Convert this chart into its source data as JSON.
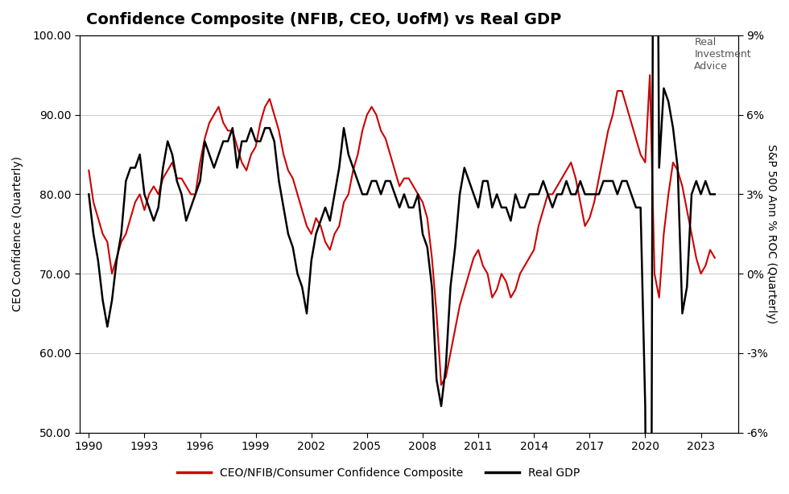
{
  "title": "Confidence Composite (NFIB, CEO, UofM) vs Real GDP",
  "xlabel": "",
  "ylabel_left": "CEO Confidence (Quarterly)",
  "ylabel_right": "S&P 500 Ann % ROC (Quarterly)",
  "ylim_left": [
    50.0,
    100.0
  ],
  "ylim_right": [
    -6.0,
    9.0
  ],
  "yticks_left": [
    50.0,
    60.0,
    70.0,
    80.0,
    90.0,
    100.0
  ],
  "yticks_right_vals": [
    -6,
    -3,
    0,
    3,
    6,
    9
  ],
  "yticks_right_labels": [
    "-6%",
    "-3%",
    "0%",
    "3%",
    "6%",
    "9%"
  ],
  "xticks": [
    1990,
    1993,
    1996,
    1999,
    2002,
    2005,
    2008,
    2011,
    2014,
    2017,
    2020,
    2023
  ],
  "xlim": [
    1989.5,
    2025.0
  ],
  "confidence_color": "#cc0000",
  "gdp_color": "#000000",
  "background_color": "#ffffff",
  "grid_color": "#cccccc",
  "legend_confidence": "CEO/NFIB/Consumer Confidence Composite",
  "legend_gdp": "Real GDP",
  "confidence_x": [
    1990.0,
    1990.25,
    1990.5,
    1990.75,
    1991.0,
    1991.25,
    1991.5,
    1991.75,
    1992.0,
    1992.25,
    1992.5,
    1992.75,
    1993.0,
    1993.25,
    1993.5,
    1993.75,
    1994.0,
    1994.25,
    1994.5,
    1994.75,
    1995.0,
    1995.25,
    1995.5,
    1995.75,
    1996.0,
    1996.25,
    1996.5,
    1996.75,
    1997.0,
    1997.25,
    1997.5,
    1997.75,
    1998.0,
    1998.25,
    1998.5,
    1998.75,
    1999.0,
    1999.25,
    1999.5,
    1999.75,
    2000.0,
    2000.25,
    2000.5,
    2000.75,
    2001.0,
    2001.25,
    2001.5,
    2001.75,
    2002.0,
    2002.25,
    2002.5,
    2002.75,
    2003.0,
    2003.25,
    2003.5,
    2003.75,
    2004.0,
    2004.25,
    2004.5,
    2004.75,
    2005.0,
    2005.25,
    2005.5,
    2005.75,
    2006.0,
    2006.25,
    2006.5,
    2006.75,
    2007.0,
    2007.25,
    2007.5,
    2007.75,
    2008.0,
    2008.25,
    2008.5,
    2008.75,
    2009.0,
    2009.25,
    2009.5,
    2009.75,
    2010.0,
    2010.25,
    2010.5,
    2010.75,
    2011.0,
    2011.25,
    2011.5,
    2011.75,
    2012.0,
    2012.25,
    2012.5,
    2012.75,
    2013.0,
    2013.25,
    2013.5,
    2013.75,
    2014.0,
    2014.25,
    2014.5,
    2014.75,
    2015.0,
    2015.25,
    2015.5,
    2015.75,
    2016.0,
    2016.25,
    2016.5,
    2016.75,
    2017.0,
    2017.25,
    2017.5,
    2017.75,
    2018.0,
    2018.25,
    2018.5,
    2018.75,
    2019.0,
    2019.25,
    2019.5,
    2019.75,
    2020.0,
    2020.25,
    2020.5,
    2020.75,
    2021.0,
    2021.25,
    2021.5,
    2021.75,
    2022.0,
    2022.25,
    2022.5,
    2022.75,
    2023.0,
    2023.25,
    2023.5,
    2023.75
  ],
  "confidence_y": [
    83,
    79,
    77,
    75,
    74,
    70,
    72,
    74,
    75,
    77,
    79,
    80,
    78,
    80,
    81,
    80,
    82,
    83,
    84,
    82,
    82,
    81,
    80,
    80,
    84,
    87,
    89,
    90,
    91,
    89,
    88,
    88,
    86,
    84,
    83,
    85,
    86,
    89,
    91,
    92,
    90,
    88,
    85,
    83,
    82,
    80,
    78,
    76,
    75,
    77,
    76,
    74,
    73,
    75,
    76,
    79,
    80,
    83,
    85,
    88,
    90,
    91,
    90,
    88,
    87,
    85,
    83,
    81,
    82,
    82,
    81,
    80,
    79,
    77,
    72,
    65,
    56,
    57,
    60,
    63,
    66,
    68,
    70,
    72,
    73,
    71,
    70,
    67,
    68,
    70,
    69,
    67,
    68,
    70,
    71,
    72,
    73,
    76,
    78,
    80,
    80,
    81,
    82,
    83,
    84,
    82,
    79,
    76,
    77,
    79,
    82,
    85,
    88,
    90,
    93,
    93,
    91,
    89,
    87,
    85,
    84,
    95,
    70,
    67,
    75,
    80,
    84,
    83,
    81,
    78,
    75,
    72,
    70,
    71,
    73,
    72
  ],
  "gdp_x": [
    1990.0,
    1990.25,
    1990.5,
    1990.75,
    1991.0,
    1991.25,
    1991.5,
    1991.75,
    1992.0,
    1992.25,
    1992.5,
    1992.75,
    1993.0,
    1993.25,
    1993.5,
    1993.75,
    1994.0,
    1994.25,
    1994.5,
    1994.75,
    1995.0,
    1995.25,
    1995.5,
    1995.75,
    1996.0,
    1996.25,
    1996.5,
    1996.75,
    1997.0,
    1997.25,
    1997.5,
    1997.75,
    1998.0,
    1998.25,
    1998.5,
    1998.75,
    1999.0,
    1999.25,
    1999.5,
    1999.75,
    2000.0,
    2000.25,
    2000.5,
    2000.75,
    2001.0,
    2001.25,
    2001.5,
    2001.75,
    2002.0,
    2002.25,
    2002.5,
    2002.75,
    2003.0,
    2003.25,
    2003.5,
    2003.75,
    2004.0,
    2004.25,
    2004.5,
    2004.75,
    2005.0,
    2005.25,
    2005.5,
    2005.75,
    2006.0,
    2006.25,
    2006.5,
    2006.75,
    2007.0,
    2007.25,
    2007.5,
    2007.75,
    2008.0,
    2008.25,
    2008.5,
    2008.75,
    2009.0,
    2009.25,
    2009.5,
    2009.75,
    2010.0,
    2010.25,
    2010.5,
    2010.75,
    2011.0,
    2011.25,
    2011.5,
    2011.75,
    2012.0,
    2012.25,
    2012.5,
    2012.75,
    2013.0,
    2013.25,
    2013.5,
    2013.75,
    2014.0,
    2014.25,
    2014.5,
    2014.75,
    2015.0,
    2015.25,
    2015.5,
    2015.75,
    2016.0,
    2016.25,
    2016.5,
    2016.75,
    2017.0,
    2017.25,
    2017.5,
    2017.75,
    2018.0,
    2018.25,
    2018.5,
    2018.75,
    2019.0,
    2019.25,
    2019.5,
    2019.75,
    2020.0,
    2020.25,
    2020.5,
    2020.75,
    2021.0,
    2021.25,
    2021.5,
    2021.75,
    2022.0,
    2022.25,
    2022.5,
    2022.75,
    2023.0,
    2023.25,
    2023.5,
    2023.75
  ],
  "gdp_y": [
    3.0,
    1.5,
    0.5,
    -1.0,
    -2.0,
    -1.0,
    0.5,
    1.5,
    3.5,
    4.0,
    4.0,
    4.5,
    3.0,
    2.5,
    2.0,
    2.5,
    4.0,
    5.0,
    4.5,
    3.5,
    3.0,
    2.0,
    2.5,
    3.0,
    3.5,
    5.0,
    4.5,
    4.0,
    4.5,
    5.0,
    5.0,
    5.5,
    4.0,
    5.0,
    5.0,
    5.5,
    5.0,
    5.0,
    5.5,
    5.5,
    5.0,
    3.5,
    2.5,
    1.5,
    1.0,
    0.0,
    -0.5,
    -1.5,
    0.5,
    1.5,
    2.0,
    2.5,
    2.0,
    3.0,
    4.0,
    5.5,
    4.5,
    4.0,
    3.5,
    3.0,
    3.0,
    3.5,
    3.5,
    3.0,
    3.5,
    3.5,
    3.0,
    2.5,
    3.0,
    2.5,
    2.5,
    3.0,
    1.5,
    1.0,
    -0.5,
    -4.0,
    -5.0,
    -3.5,
    -0.5,
    1.0,
    3.0,
    4.0,
    3.5,
    3.0,
    2.5,
    3.5,
    3.5,
    2.5,
    3.0,
    2.5,
    2.5,
    2.0,
    3.0,
    2.5,
    2.5,
    3.0,
    3.0,
    3.0,
    3.5,
    3.0,
    2.5,
    3.0,
    3.0,
    3.5,
    3.0,
    3.0,
    3.5,
    3.0,
    3.0,
    3.0,
    3.0,
    3.5,
    3.5,
    3.5,
    3.0,
    3.5,
    3.5,
    3.0,
    2.5,
    2.5,
    -5.0,
    -31.0,
    33.0,
    4.0,
    7.0,
    6.5,
    5.5,
    4.0,
    -1.5,
    -0.5,
    3.0,
    3.5,
    3.0,
    3.5,
    3.0,
    3.0
  ]
}
